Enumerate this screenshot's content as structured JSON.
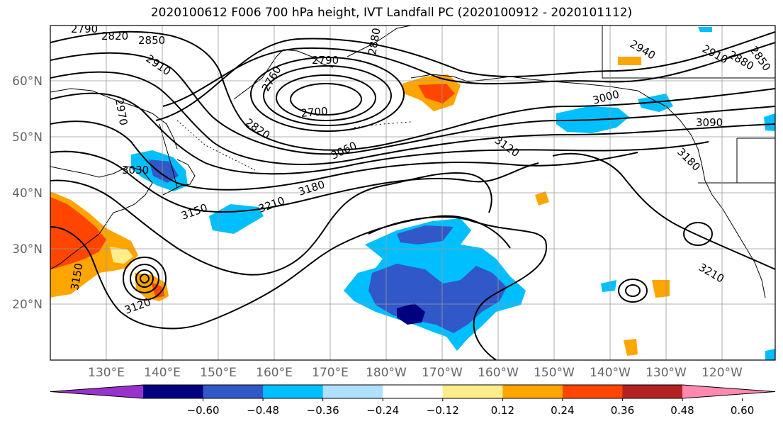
{
  "title": "2020100612 F006 700 hPa height, IVT Landfall PC (2020100912 - 2020101112)",
  "map": {
    "lat_ticks": [
      "60°N",
      "50°N",
      "40°N",
      "30°N",
      "20°N"
    ],
    "lon_ticks": [
      "130°E",
      "140°E",
      "150°E",
      "160°E",
      "170°E",
      "180°W",
      "170°W",
      "160°W",
      "150°W",
      "140°W",
      "130°W",
      "120°W"
    ],
    "contour_labels": [
      "2790",
      "2820",
      "2850",
      "2910",
      "2970",
      "3030",
      "3150",
      "3150",
      "3120",
      "2760",
      "2880",
      "2790",
      "2700",
      "2820",
      "3060",
      "3210",
      "3180",
      "3120",
      "3000",
      "2940",
      "2910",
      "2880",
      "2850",
      "3090",
      "3180",
      "3210"
    ]
  },
  "colorbar": {
    "ticks": [
      "−0.60",
      "−0.48",
      "−0.36",
      "−0.24",
      "−0.12",
      "0.12",
      "0.24",
      "0.36",
      "0.48",
      "0.60"
    ],
    "colors": [
      "#9932cc",
      "#000080",
      "#3158c8",
      "#00bfff",
      "#b0e2ff",
      "#ffffff",
      "#ffec8b",
      "#ffa500",
      "#ff4500",
      "#b22222",
      "#ff89b0"
    ]
  }
}
